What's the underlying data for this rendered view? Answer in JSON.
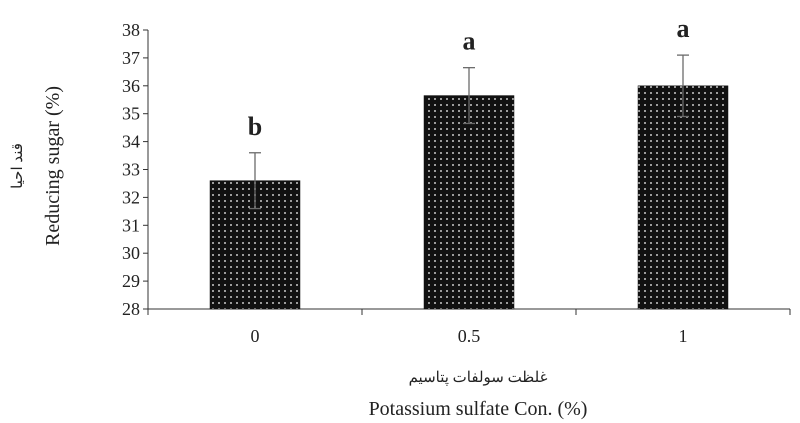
{
  "chart_data": {
    "type": "bar",
    "categories": [
      "0",
      "0.5",
      "1"
    ],
    "series": [
      {
        "values": [
          32.6,
          35.65,
          36.0
        ],
        "errors": [
          1.0,
          1.0,
          1.1
        ],
        "significance": [
          "b",
          "a",
          "a"
        ]
      }
    ],
    "xlabel_fa": "غلظت سولفات پتاسیم",
    "xlabel": "Potassium sulfate Con. (%)",
    "ylabel_fa": "قند احیا",
    "ylabel": "Reducing sugar (%)",
    "ylim": [
      28,
      38
    ],
    "yticks": [
      "28",
      "29",
      "30",
      "31",
      "32",
      "33",
      "34",
      "35",
      "36",
      "37",
      "38"
    ],
    "bar_pattern": "black with white dots",
    "grid": false,
    "legend": "none"
  }
}
